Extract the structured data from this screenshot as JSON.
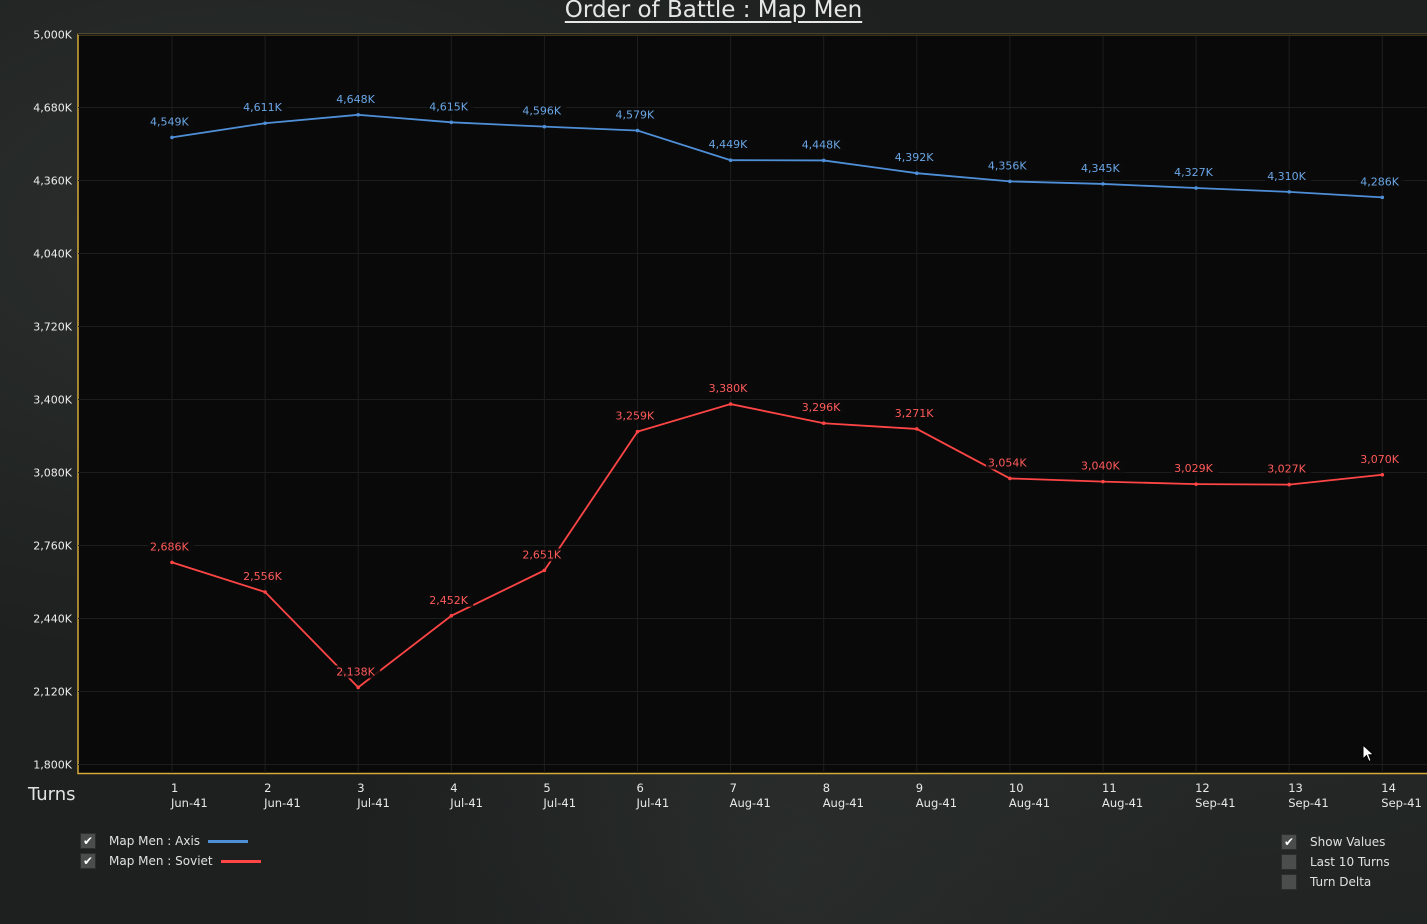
{
  "title": "Order of Battle : Map Men",
  "chart_data": {
    "type": "line",
    "xlabel": "Turns",
    "ylim": [
      1800,
      5000
    ],
    "y_ticks": [
      "5,000K",
      "4,680K",
      "4,360K",
      "4,040K",
      "3,720K",
      "3,400K",
      "3,080K",
      "2,760K",
      "2,440K",
      "2,120K",
      "1,800K"
    ],
    "x": [
      1,
      2,
      3,
      4,
      5,
      6,
      7,
      8,
      9,
      10,
      11,
      12,
      13,
      14
    ],
    "x_dates": [
      "Jun-41",
      "Jun-41",
      "Jul-41",
      "Jul-41",
      "Jul-41",
      "Jul-41",
      "Aug-41",
      "Aug-41",
      "Aug-41",
      "Aug-41",
      "Aug-41",
      "Sep-41",
      "Sep-41",
      "Sep-41"
    ],
    "series": [
      {
        "name": "Map Men : Axis",
        "color": "#4f8fd8",
        "values": [
          4549,
          4611,
          4648,
          4615,
          4596,
          4579,
          4449,
          4448,
          4392,
          4356,
          4345,
          4327,
          4310,
          4286
        ],
        "labels": [
          "4,549K",
          "4,611K",
          "4,648K",
          "4,615K",
          "4,596K",
          "4,579K",
          "4,449K",
          "4,448K",
          "4,392K",
          "4,356K",
          "4,345K",
          "4,327K",
          "4,310K",
          "4,286K"
        ]
      },
      {
        "name": "Map Men : Soviet",
        "color": "#ff4545",
        "values": [
          2686,
          2556,
          2138,
          2452,
          2651,
          3259,
          3380,
          3296,
          3271,
          3054,
          3040,
          3029,
          3027,
          3070
        ],
        "labels": [
          "2,686K",
          "2,556K",
          "2,138K",
          "2,452K",
          "2,651K",
          "3,259K",
          "3,380K",
          "3,296K",
          "3,271K",
          "3,054K",
          "3,040K",
          "3,029K",
          "3,027K",
          "3,070K"
        ]
      }
    ],
    "grid": true,
    "legend": "bottom-left"
  },
  "legend": [
    {
      "label": "Map Men : Axis",
      "checked": true,
      "color": "#4f8fd8"
    },
    {
      "label": "Map Men : Soviet",
      "checked": true,
      "color": "#ff4545"
    }
  ],
  "options": [
    {
      "label": "Show Values",
      "checked": true
    },
    {
      "label": "Last 10 Turns",
      "checked": false
    },
    {
      "label": "Turn Delta",
      "checked": false
    }
  ]
}
